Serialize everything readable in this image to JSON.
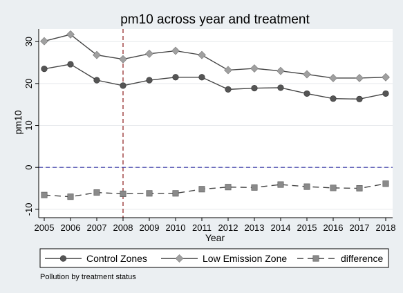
{
  "chart_data": {
    "type": "line",
    "title": "pm10 across year and treatment",
    "xlabel": "Year",
    "ylabel": "pm10",
    "x": [
      2005,
      2006,
      2007,
      2008,
      2009,
      2010,
      2011,
      2012,
      2013,
      2014,
      2015,
      2016,
      2017,
      2018
    ],
    "xticks": [
      "2005",
      "2006",
      "2007",
      "2008",
      "2009",
      "2010",
      "2011",
      "2012",
      "2013",
      "2014",
      "2015",
      "2016",
      "2017",
      "2018"
    ],
    "yticks": [
      -10,
      0,
      10,
      20,
      30
    ],
    "ylim": [
      -12,
      33
    ],
    "series": [
      {
        "name": "Control Zones",
        "marker": "circle",
        "dash": "solid",
        "color": "#444444",
        "markerColor": "#555555",
        "values": [
          23.5,
          24.6,
          20.8,
          19.5,
          20.8,
          21.5,
          21.5,
          18.6,
          18.9,
          19.0,
          17.6,
          16.4,
          16.3,
          17.6
        ]
      },
      {
        "name": "Low Emission Zone",
        "marker": "diamond",
        "dash": "solid",
        "color": "#444444",
        "markerColor": "#a0a0a0",
        "values": [
          30.1,
          31.7,
          26.8,
          25.8,
          27.1,
          27.8,
          26.8,
          23.2,
          23.6,
          23.0,
          22.2,
          21.3,
          21.3,
          21.5
        ]
      },
      {
        "name": "difference",
        "marker": "square",
        "dash": "dashed",
        "color": "#444444",
        "markerColor": "#8a8a8a",
        "values": [
          -6.6,
          -7.0,
          -6.0,
          -6.3,
          -6.2,
          -6.2,
          -5.2,
          -4.7,
          -4.8,
          -4.1,
          -4.6,
          -4.9,
          -5.0,
          -3.9
        ]
      }
    ],
    "reference_lines": [
      {
        "axis": "x",
        "value": 2008,
        "color": "#8b1a1a",
        "style": "dashed"
      },
      {
        "axis": "y",
        "value": 0,
        "color": "#3a3aa8",
        "style": "dashed"
      }
    ],
    "grid": true,
    "legend_position": "bottom",
    "note": "Pollution by treatment status",
    "colors": {
      "background": "#ebeff2",
      "plot_background": "#ffffff",
      "grid": "#e6e9ec"
    }
  }
}
